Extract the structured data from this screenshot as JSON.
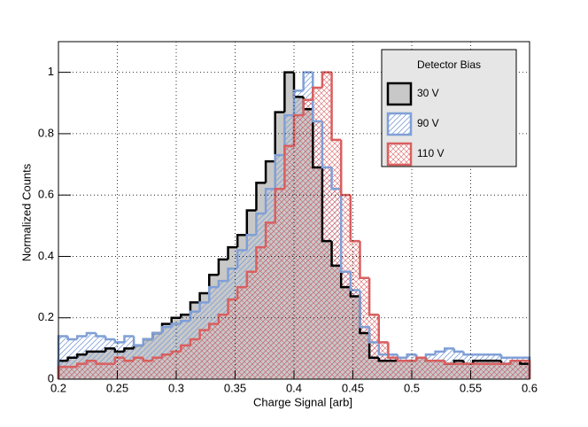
{
  "chart_data": {
    "type": "histogram",
    "xlabel": "Charge Signal [arb]",
    "ylabel": "Normalized Counts",
    "legend_title": "Detector Bias",
    "legend": "upper right",
    "grid": true,
    "xlim": [
      0.2,
      0.6
    ],
    "ylim": [
      0,
      1.1
    ],
    "xticks": [
      0.2,
      0.25,
      0.3,
      0.35,
      0.4,
      0.45,
      0.5,
      0.55,
      0.6
    ],
    "yticks": [
      0,
      0.2,
      0.4,
      0.6,
      0.8,
      1
    ],
    "bins": [
      0.2,
      0.208,
      0.216,
      0.224,
      0.232,
      0.24,
      0.248,
      0.256,
      0.264,
      0.272,
      0.28,
      0.288,
      0.296,
      0.304,
      0.312,
      0.32,
      0.328,
      0.336,
      0.344,
      0.352,
      0.36,
      0.368,
      0.376,
      0.384,
      0.392,
      0.4,
      0.408,
      0.416,
      0.424,
      0.432,
      0.44,
      0.448,
      0.456,
      0.464,
      0.472,
      0.48,
      0.488,
      0.496,
      0.504,
      0.512,
      0.52,
      0.528,
      0.536,
      0.544,
      0.552,
      0.56,
      0.568,
      0.576,
      0.584,
      0.592,
      0.6
    ],
    "series": [
      {
        "name": "30 V",
        "color": "#000000",
        "fill": "#c8c8c8",
        "fill_style": "solid",
        "values": [
          0.06,
          0.07,
          0.08,
          0.09,
          0.09,
          0.1,
          0.09,
          0.1,
          0.11,
          0.13,
          0.15,
          0.18,
          0.2,
          0.21,
          0.25,
          0.28,
          0.34,
          0.39,
          0.43,
          0.47,
          0.55,
          0.64,
          0.71,
          0.87,
          1.0,
          0.92,
          0.88,
          0.69,
          0.45,
          0.37,
          0.3,
          0.27,
          0.15,
          0.07,
          0.06,
          0.06,
          0.06,
          0.06,
          0.07,
          0.06,
          0.06,
          0.05,
          0.06,
          0.05,
          0.06,
          0.06,
          0.06,
          0.05,
          0.06,
          0.05
        ]
      },
      {
        "name": "90 V",
        "color": "#7f9fd6",
        "fill": "#7f9fd6",
        "fill_style": "hatch",
        "values": [
          0.14,
          0.13,
          0.14,
          0.15,
          0.14,
          0.13,
          0.12,
          0.14,
          0.11,
          0.13,
          0.15,
          0.17,
          0.18,
          0.19,
          0.22,
          0.25,
          0.3,
          0.32,
          0.36,
          0.42,
          0.47,
          0.54,
          0.62,
          0.73,
          0.86,
          0.94,
          1.0,
          0.84,
          0.69,
          0.62,
          0.35,
          0.29,
          0.17,
          0.12,
          0.08,
          0.08,
          0.07,
          0.08,
          0.07,
          0.08,
          0.09,
          0.1,
          0.09,
          0.08,
          0.08,
          0.08,
          0.08,
          0.07,
          0.07,
          0.07
        ]
      },
      {
        "name": "110 V",
        "color": "#d95f5f",
        "fill": "#d95f5f",
        "fill_style": "crosshatch",
        "values": [
          0.04,
          0.04,
          0.05,
          0.06,
          0.05,
          0.05,
          0.07,
          0.06,
          0.07,
          0.06,
          0.07,
          0.08,
          0.09,
          0.11,
          0.13,
          0.16,
          0.18,
          0.21,
          0.26,
          0.3,
          0.35,
          0.43,
          0.51,
          0.62,
          0.76,
          0.86,
          0.91,
          0.95,
          1.0,
          0.78,
          0.6,
          0.45,
          0.33,
          0.21,
          0.12,
          0.07,
          0.06,
          0.06,
          0.07,
          0.06,
          0.06,
          0.05,
          0.05,
          0.05,
          0.05,
          0.05,
          0.05,
          0.05,
          0.06,
          0.06
        ]
      }
    ]
  }
}
